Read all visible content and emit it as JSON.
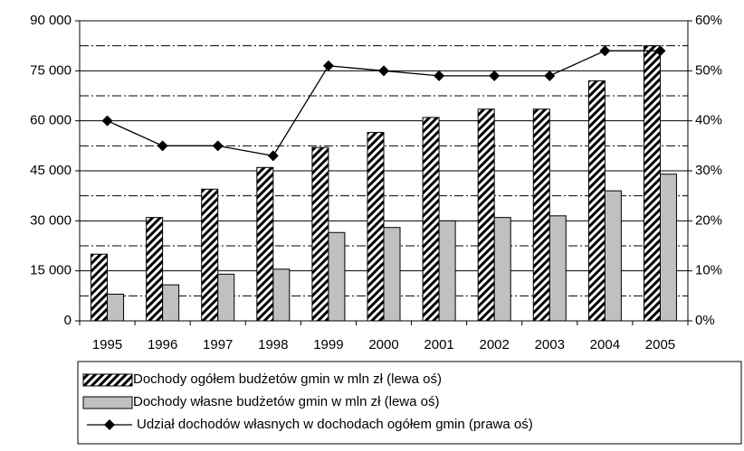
{
  "chart_data": {
    "type": "bar-line",
    "categories": [
      "1995",
      "1996",
      "1997",
      "1998",
      "1999",
      "2000",
      "2001",
      "2002",
      "2003",
      "2004",
      "2005"
    ],
    "series": [
      {
        "name": "Dochody ogółem budżetów gmin w mln zł (lewa oś)",
        "type": "bar",
        "pattern": "hatch",
        "color": "#000000",
        "values": [
          20000,
          31000,
          39500,
          46000,
          52000,
          56500,
          61000,
          63500,
          63500,
          72000,
          82500
        ]
      },
      {
        "name": "Dochody własne budżetów gmin w mln zł (lewa oś)",
        "type": "bar",
        "color": "#c0c0c0",
        "values": [
          8000,
          10800,
          14000,
          15500,
          26500,
          28000,
          30000,
          31000,
          31500,
          39000,
          44000
        ]
      },
      {
        "name": "Udział dochodów własnych w dochodach ogółem gmin (prawa oś)",
        "type": "line",
        "axis": "y2",
        "color": "#000000",
        "values": [
          40,
          35,
          35,
          33,
          51,
          50,
          49,
          49,
          49,
          54,
          54
        ]
      }
    ],
    "ylim": [
      0,
      90000
    ],
    "yticks": [
      0,
      {
        "value": 15000,
        "label": "15 000"
      },
      {
        "value": 30000,
        "label": "30 000"
      },
      {
        "value": 45000,
        "label": "45 000"
      },
      {
        "value": 60000,
        "label": "60 000"
      },
      {
        "value": 75000,
        "label": "75 000"
      },
      {
        "value": 90000,
        "label": "90 000"
      }
    ],
    "minor_yticks": [
      7500,
      22500,
      37500,
      52500,
      67500,
      82500
    ],
    "y2lim": [
      0,
      60
    ],
    "y2ticks": [
      {
        "value": 0,
        "label": "0%"
      },
      {
        "value": 10,
        "label": "10%"
      },
      {
        "value": 20,
        "label": "20%"
      },
      {
        "value": 30,
        "label": "30%"
      },
      {
        "value": 40,
        "label": "40%"
      },
      {
        "value": 50,
        "label": "50%"
      },
      {
        "value": 60,
        "label": "60%"
      }
    ],
    "grid": true,
    "legend": "bottom"
  }
}
